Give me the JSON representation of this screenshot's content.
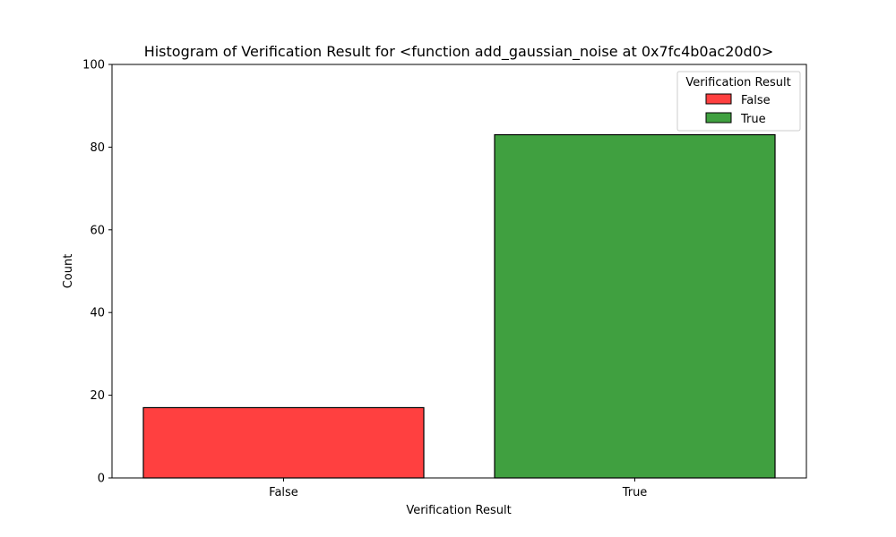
{
  "chart_data": {
    "type": "bar",
    "title": "Histogram of Verification Result for <function add_gaussian_noise at 0x7fc4b0ac20d0>",
    "xlabel": "Verification Result",
    "ylabel": "Count",
    "categories": [
      "False",
      "True"
    ],
    "values": [
      17,
      83
    ],
    "colors": [
      "#ff4040",
      "#40a040"
    ],
    "ylim": [
      0,
      100
    ],
    "yticks": [
      0,
      20,
      40,
      60,
      80,
      100
    ],
    "grid": false,
    "legend": {
      "title": "Verification Result",
      "position": "top-right",
      "entries": [
        "False",
        "True"
      ]
    }
  }
}
